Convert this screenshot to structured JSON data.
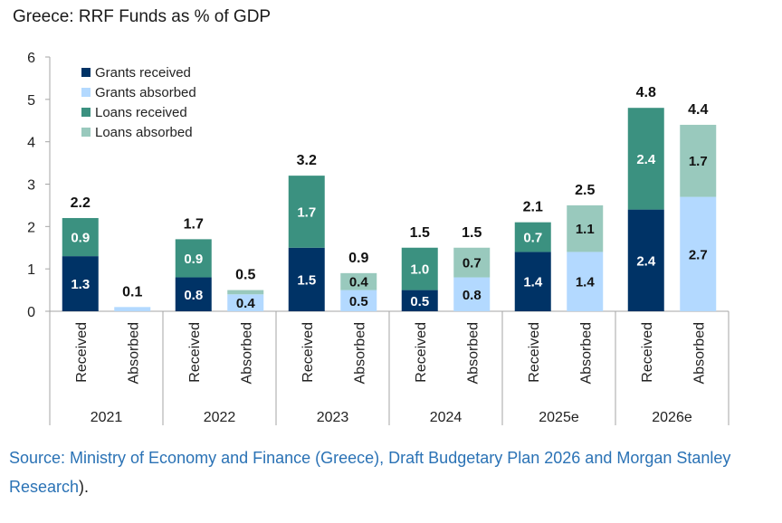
{
  "chart_data": {
    "type": "bar",
    "stacked": true,
    "title": "Greece: RRF Funds as % of GDP",
    "xlabel": "",
    "ylabel": "",
    "ylim": [
      0,
      6
    ],
    "yticks": [
      0,
      1,
      2,
      3,
      4,
      5,
      6
    ],
    "grid": false,
    "legend_position": "top-left",
    "groups": [
      "2021",
      "2022",
      "2023",
      "2024",
      "2025e",
      "2026e"
    ],
    "sub_categories": [
      "Received",
      "Absorbed"
    ],
    "series": [
      {
        "name": "Grants received",
        "color": "#003366",
        "label_color": "#ffffff",
        "values": [
          1.3,
          0.8,
          1.5,
          0.5,
          1.4,
          2.4
        ]
      },
      {
        "name": "Grants absorbed",
        "color": "#b3d9ff",
        "label_color": "#111111",
        "values": [
          0.1,
          0.4,
          0.5,
          0.8,
          1.4,
          2.7
        ]
      },
      {
        "name": "Loans received",
        "color": "#3b9180",
        "label_color": "#ffffff",
        "values": [
          0.9,
          0.9,
          1.7,
          1.0,
          0.7,
          2.4
        ]
      },
      {
        "name": "Loans absorbed",
        "color": "#99c9bd",
        "label_color": "#111111",
        "values": [
          0.0,
          0.1,
          0.4,
          0.7,
          1.1,
          1.7
        ]
      }
    ],
    "bars": [
      {
        "group": "2021",
        "type": "Received",
        "segments": [
          {
            "series": "Grants received",
            "value": 1.3,
            "label": "1.3"
          },
          {
            "series": "Loans received",
            "value": 0.9,
            "label": "0.9"
          }
        ],
        "total_label": "2.2"
      },
      {
        "group": "2021",
        "type": "Absorbed",
        "segments": [
          {
            "series": "Grants absorbed",
            "value": 0.1,
            "label": ""
          },
          {
            "series": "Loans absorbed",
            "value": 0.0,
            "label": ""
          }
        ],
        "total_label": "0.1"
      },
      {
        "group": "2022",
        "type": "Received",
        "segments": [
          {
            "series": "Grants received",
            "value": 0.8,
            "label": "0.8"
          },
          {
            "series": "Loans received",
            "value": 0.9,
            "label": "0.9"
          }
        ],
        "total_label": "1.7"
      },
      {
        "group": "2022",
        "type": "Absorbed",
        "segments": [
          {
            "series": "Grants absorbed",
            "value": 0.4,
            "label": "0.4"
          },
          {
            "series": "Loans absorbed",
            "value": 0.1,
            "label": ""
          }
        ],
        "total_label": "0.5"
      },
      {
        "group": "2023",
        "type": "Received",
        "segments": [
          {
            "series": "Grants received",
            "value": 1.5,
            "label": "1.5"
          },
          {
            "series": "Loans received",
            "value": 1.7,
            "label": "1.7"
          }
        ],
        "total_label": "3.2"
      },
      {
        "group": "2023",
        "type": "Absorbed",
        "segments": [
          {
            "series": "Grants absorbed",
            "value": 0.5,
            "label": "0.5"
          },
          {
            "series": "Loans absorbed",
            "value": 0.4,
            "label": "0.4"
          }
        ],
        "total_label": "0.9"
      },
      {
        "group": "2024",
        "type": "Received",
        "segments": [
          {
            "series": "Grants received",
            "value": 0.5,
            "label": "0.5"
          },
          {
            "series": "Loans received",
            "value": 1.0,
            "label": "1.0"
          }
        ],
        "total_label": "1.5"
      },
      {
        "group": "2024",
        "type": "Absorbed",
        "segments": [
          {
            "series": "Grants absorbed",
            "value": 0.8,
            "label": "0.8"
          },
          {
            "series": "Loans absorbed",
            "value": 0.7,
            "label": "0.7"
          }
        ],
        "total_label": "1.5"
      },
      {
        "group": "2025e",
        "type": "Received",
        "segments": [
          {
            "series": "Grants received",
            "value": 1.4,
            "label": "1.4"
          },
          {
            "series": "Loans received",
            "value": 0.7,
            "label": "0.7"
          }
        ],
        "total_label": "2.1"
      },
      {
        "group": "2025e",
        "type": "Absorbed",
        "segments": [
          {
            "series": "Grants absorbed",
            "value": 1.4,
            "label": "1.4"
          },
          {
            "series": "Loans absorbed",
            "value": 1.1,
            "label": "1.1"
          }
        ],
        "total_label": "2.5"
      },
      {
        "group": "2026e",
        "type": "Received",
        "segments": [
          {
            "series": "Grants received",
            "value": 2.4,
            "label": "2.4"
          },
          {
            "series": "Loans received",
            "value": 2.4,
            "label": "2.4"
          }
        ],
        "total_label": "4.8"
      },
      {
        "group": "2026e",
        "type": "Absorbed",
        "segments": [
          {
            "series": "Grants absorbed",
            "value": 2.7,
            "label": "2.7"
          },
          {
            "series": "Loans absorbed",
            "value": 1.7,
            "label": "1.7"
          }
        ],
        "total_label": "4.4"
      }
    ]
  },
  "source": {
    "text": "Source: Ministry of Economy and Finance (Greece), Draft Budgetary Plan 2026 and Morgan Stanley Research",
    "suffix": ")."
  }
}
